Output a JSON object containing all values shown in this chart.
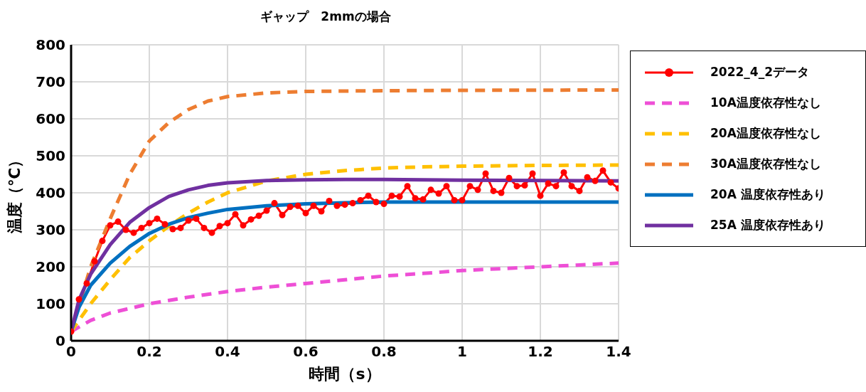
{
  "chart_data": {
    "type": "line",
    "title": "ギャップ　2mmの場合",
    "xlabel": "時間（s）",
    "ylabel": "温度（℃）",
    "xlim": [
      0,
      1.4
    ],
    "xticks": [
      0,
      0.2,
      0.4,
      0.6,
      0.8,
      1,
      1.2,
      1.4
    ],
    "ylim": [
      0,
      800
    ],
    "yticks": [
      0,
      100,
      200,
      300,
      400,
      500,
      600,
      700,
      800
    ],
    "grid": true,
    "legend": "right",
    "series": [
      {
        "name": "2022_4_2データ",
        "color": "#ff0000",
        "marker": "circle",
        "line_style": "solid",
        "x": [
          0,
          0.02,
          0.04,
          0.06,
          0.08,
          0.1,
          0.12,
          0.14,
          0.16,
          0.18,
          0.2,
          0.22,
          0.24,
          0.26,
          0.28,
          0.3,
          0.32,
          0.34,
          0.36,
          0.38,
          0.4,
          0.42,
          0.44,
          0.46,
          0.48,
          0.5,
          0.52,
          0.54,
          0.56,
          0.58,
          0.6,
          0.62,
          0.64,
          0.66,
          0.68,
          0.7,
          0.72,
          0.74,
          0.76,
          0.78,
          0.8,
          0.82,
          0.84,
          0.86,
          0.88,
          0.9,
          0.92,
          0.94,
          0.96,
          0.98,
          1,
          1.02,
          1.04,
          1.06,
          1.08,
          1.1,
          1.12,
          1.14,
          1.16,
          1.18,
          1.2,
          1.22,
          1.24,
          1.26,
          1.28,
          1.3,
          1.32,
          1.34,
          1.36,
          1.38,
          1.4
        ],
        "values": [
          25,
          112,
          155,
          215,
          270,
          312,
          322,
          300,
          292,
          305,
          318,
          330,
          315,
          302,
          305,
          325,
          330,
          305,
          292,
          310,
          318,
          342,
          312,
          328,
          338,
          352,
          372,
          340,
          362,
          365,
          345,
          365,
          350,
          378,
          365,
          368,
          372,
          380,
          392,
          375,
          370,
          392,
          390,
          418,
          385,
          382,
          408,
          398,
          418,
          380,
          380,
          418,
          408,
          452,
          405,
          400,
          440,
          418,
          420,
          452,
          392,
          425,
          418,
          455,
          418,
          405,
          442,
          432,
          460,
          428,
          412
        ]
      },
      {
        "name": "10A温度依存性なし",
        "color": "#ee4fd6",
        "marker": "none",
        "line_style": "dashed",
        "x": [
          0,
          0.05,
          0.1,
          0.2,
          0.3,
          0.4,
          0.5,
          0.6,
          0.7,
          0.8,
          0.9,
          1,
          1.1,
          1.2,
          1.3,
          1.4
        ],
        "values": [
          25,
          55,
          75,
          100,
          118,
          133,
          145,
          155,
          165,
          175,
          182,
          190,
          195,
          200,
          205,
          210
        ]
      },
      {
        "name": "20A温度依存性なし",
        "color": "#ffc000",
        "marker": "none",
        "line_style": "dashed",
        "x": [
          0,
          0.05,
          0.1,
          0.15,
          0.2,
          0.25,
          0.3,
          0.35,
          0.4,
          0.5,
          0.6,
          0.7,
          0.8,
          0.9,
          1,
          1.2,
          1.4
        ],
        "values": [
          25,
          100,
          165,
          225,
          270,
          310,
          345,
          375,
          400,
          432,
          450,
          460,
          467,
          470,
          472,
          474,
          475
        ]
      },
      {
        "name": "30A温度依存性なし",
        "color": "#ed7d31",
        "marker": "none",
        "line_style": "dashed",
        "x": [
          0,
          0.05,
          0.1,
          0.15,
          0.2,
          0.25,
          0.3,
          0.35,
          0.4,
          0.5,
          0.6,
          0.8,
          1,
          1.4
        ],
        "values": [
          25,
          200,
          330,
          450,
          540,
          590,
          625,
          648,
          660,
          670,
          674,
          676,
          677,
          678
        ]
      },
      {
        "name": "20A 温度依存性あり",
        "color": "#0070c0",
        "marker": "none",
        "line_style": "solid",
        "x": [
          0,
          0.02,
          0.05,
          0.1,
          0.15,
          0.2,
          0.25,
          0.3,
          0.35,
          0.4,
          0.5,
          0.6,
          0.7,
          0.8,
          1,
          1.4
        ],
        "values": [
          25,
          90,
          150,
          210,
          255,
          290,
          315,
          333,
          345,
          355,
          365,
          370,
          373,
          375,
          375,
          375
        ]
      },
      {
        "name": "25A 温度依存性あり",
        "color": "#7030a0",
        "marker": "none",
        "line_style": "solid",
        "x": [
          0,
          0.02,
          0.05,
          0.1,
          0.15,
          0.2,
          0.25,
          0.3,
          0.35,
          0.4,
          0.5,
          0.6,
          0.7,
          0.8,
          1,
          1.4
        ],
        "values": [
          25,
          110,
          180,
          260,
          320,
          360,
          390,
          408,
          420,
          427,
          433,
          435,
          436,
          436,
          434,
          432
        ]
      }
    ]
  }
}
